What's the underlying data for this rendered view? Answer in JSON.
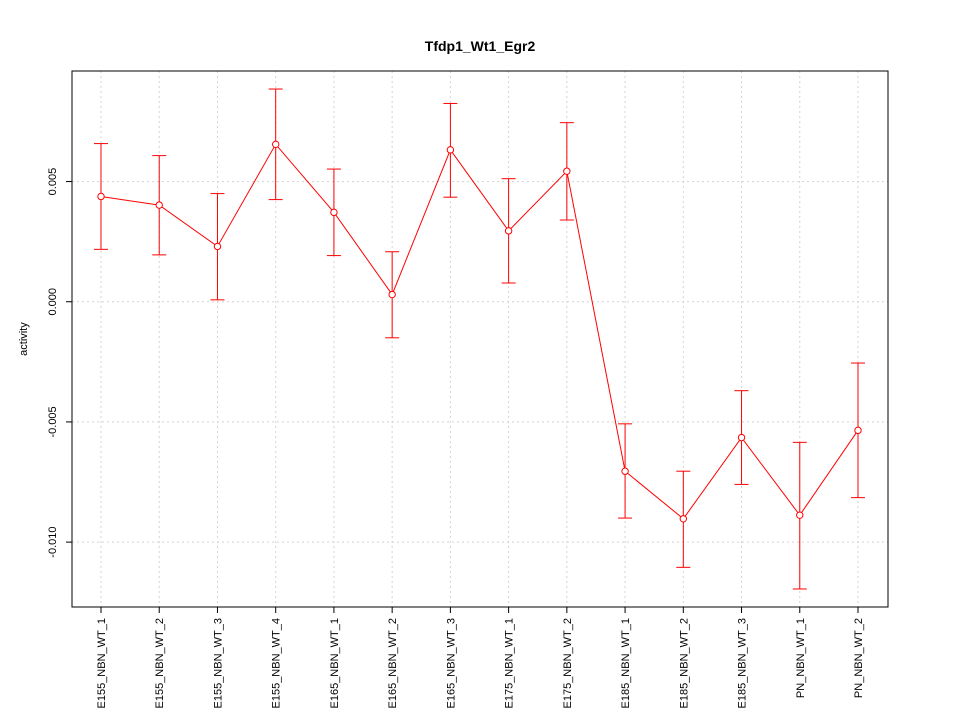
{
  "chart_data": {
    "type": "line",
    "title": "Tfdp1_Wt1_Egr2",
    "xlabel": "",
    "ylabel": "activity",
    "categories": [
      "E155_NBN_WT_1",
      "E155_NBN_WT_2",
      "E155_NBN_WT_3",
      "E155_NBN_WT_4",
      "E165_NBN_WT_1",
      "E165_NBN_WT_2",
      "E165_NBN_WT_3",
      "E175_NBN_WT_1",
      "E175_NBN_WT_2",
      "E185_NBN_WT_1",
      "E185_NBN_WT_2",
      "E185_NBN_WT_3",
      "PN_NBN_WT_1",
      "PN_NBN_WT_2"
    ],
    "series": [
      {
        "values": [
          0.00438,
          0.00402,
          0.0023,
          0.00655,
          0.00372,
          0.0003,
          0.00632,
          0.00295,
          0.00543,
          -0.00705,
          -0.00903,
          -0.00565,
          -0.00888,
          -0.00535
        ],
        "lower": [
          0.00218,
          0.00195,
          8e-05,
          0.00425,
          0.00192,
          -0.0015,
          0.00435,
          0.00078,
          0.0034,
          -0.009,
          -0.01105,
          -0.0076,
          -0.01195,
          -0.00815
        ],
        "upper": [
          0.00658,
          0.00608,
          0.0045,
          0.00885,
          0.00552,
          0.00208,
          0.00825,
          0.00512,
          0.00745,
          -0.00508,
          -0.00705,
          -0.0037,
          -0.00585,
          -0.00255
        ],
        "color": "#ff0000"
      }
    ],
    "ylim": [
      -0.0127,
      0.0096
    ],
    "yticks": [
      0.005,
      0.0,
      -0.005,
      -0.01
    ],
    "ytick_labels": [
      "0.005",
      "0.000",
      "-0.005",
      "-0.010"
    ],
    "grid": true,
    "legend": "none"
  }
}
